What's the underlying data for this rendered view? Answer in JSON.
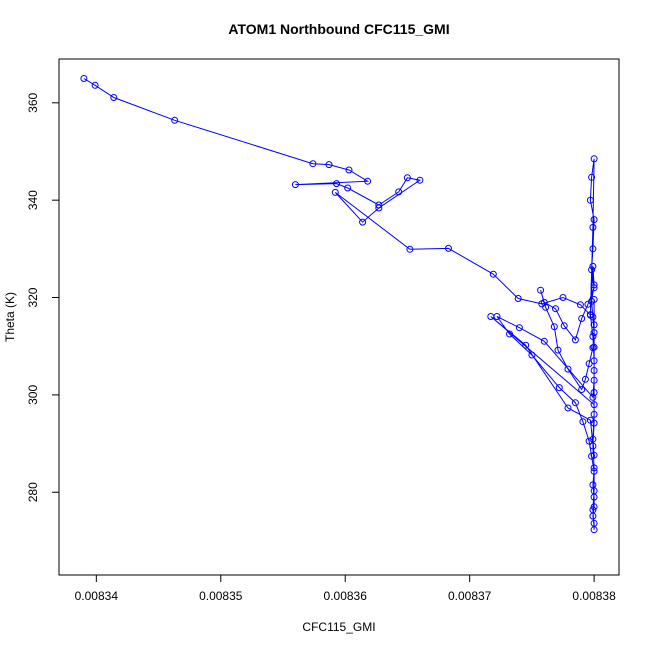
{
  "chart_data": {
    "type": "scatter",
    "title": "ATOM1 Northbound CFC115_GMI",
    "xlabel": "CFC115_GMI",
    "ylabel": "Theta (K)",
    "xlim": [
      0.008337,
      0.008382
    ],
    "ylim": [
      263,
      369
    ],
    "xticks": [
      "0.00834",
      "0.00835",
      "0.00836",
      "0.00837",
      "0.00838"
    ],
    "yticks": [
      "280",
      "300",
      "320",
      "340",
      "360"
    ],
    "grid": false,
    "legend": "none",
    "series_color": "#0000ff",
    "connected": true,
    "series": [
      {
        "name": "",
        "x": [
          0.008339,
          0.0083399,
          0.0083414,
          0.0083463,
          0.0083574,
          0.0083587,
          0.0083603,
          0.0083618,
          0.008356,
          0.0083593,
          0.0083602,
          0.0083627,
          0.0083643,
          0.008365,
          0.008366,
          0.0083627,
          0.0083614,
          0.0083592,
          0.0083652,
          0.0083683,
          0.0083719,
          0.0083739,
          0.0083758,
          0.0083775,
          0.0083789,
          0.0083797,
          0.0083799,
          0.00838,
          0.0083798,
          0.0083797,
          0.00838,
          0.0083799,
          0.0083798,
          0.00838,
          0.0083795,
          0.008379,
          0.0083785,
          0.0083776,
          0.0083769,
          0.008376,
          0.0083757,
          0.0083761,
          0.0083768,
          0.0083771,
          0.0083779,
          0.008379,
          0.0083793,
          0.0083796,
          0.0083799,
          0.00838,
          0.0083799,
          0.0083798,
          0.00838,
          0.0083799,
          0.0083797,
          0.0083799,
          0.00838,
          0.00838,
          0.0083799,
          0.008376,
          0.008374,
          0.0083722,
          0.0083732,
          0.008375,
          0.0083772,
          0.0083785,
          0.0083791,
          0.0083796,
          0.0083798,
          0.00838,
          0.0083799,
          0.00838,
          0.00838,
          0.0083799,
          0.00838,
          0.00838,
          0.0083799,
          0.00838,
          0.00838,
          0.0083799,
          0.00838,
          0.00838,
          0.0083717,
          0.0083745,
          0.0083779,
          0.0083797,
          0.00838,
          0.0083799,
          0.00838,
          0.00838,
          0.00838,
          0.00838,
          0.00838,
          0.00838
        ],
        "y": [
          365.0,
          363.6,
          361.1,
          356.4,
          347.5,
          347.3,
          346.2,
          343.9,
          343.2,
          343.4,
          342.5,
          339.0,
          341.7,
          344.6,
          344.1,
          338.4,
          335.5,
          341.6,
          329.9,
          330.1,
          324.8,
          319.8,
          318.7,
          320.0,
          318.5,
          316.4,
          334.4,
          348.5,
          344.7,
          340.0,
          336.0,
          330.0,
          325.7,
          322.0,
          318.6,
          315.7,
          311.3,
          314.2,
          317.7,
          319.0,
          321.5,
          318.0,
          314.0,
          309.2,
          305.3,
          301.1,
          303.2,
          306.4,
          309.7,
          312.8,
          316.0,
          319.2,
          322.6,
          326.4,
          316.5,
          312.0,
          307.0,
          303.0,
          299.5,
          311.0,
          313.8,
          316.1,
          312.5,
          308.2,
          301.5,
          298.4,
          294.5,
          290.5,
          287.4,
          284.3,
          281.5,
          279.0,
          277.0,
          275.1,
          273.6,
          272.3,
          276.4,
          280.3,
          285.0,
          289.5,
          294.2,
          298.0,
          316.1,
          310.2,
          297.3,
          294.8,
          287.6,
          290.9,
          296.0,
          300.5,
          305.0,
          309.8,
          314.4,
          319.6
        ]
      }
    ]
  }
}
